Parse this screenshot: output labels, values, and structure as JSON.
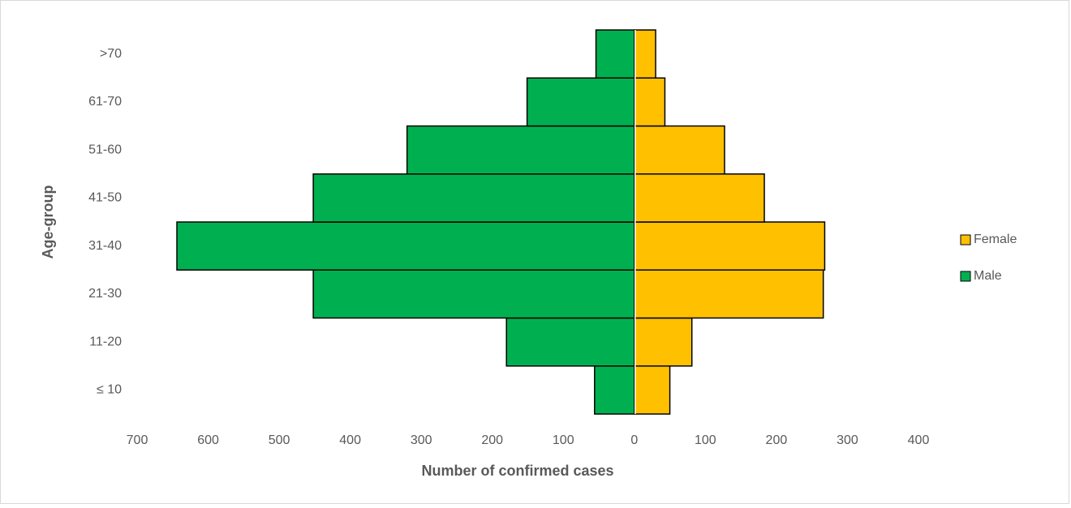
{
  "chart_data": {
    "type": "bar",
    "orientation": "horizontal",
    "stacked": true,
    "xlabel": "Number of confirmed cases",
    "ylabel": "Age-group",
    "categories": [
      "≤ 10",
      "11-20",
      "21-30",
      "31-40",
      "41-50",
      "51-60",
      "61-70",
      ">70"
    ],
    "series": [
      {
        "name": "Female",
        "color": "#ffc000",
        "values": [
          50,
          81,
          266,
          268,
          183,
          127,
          43,
          30
        ]
      },
      {
        "name": "Male",
        "color": "#00b050",
        "values": [
          -56,
          -180,
          -452,
          -644,
          -452,
          -320,
          -151,
          -54
        ]
      }
    ],
    "xlim": [
      -700,
      400
    ],
    "xticks": [
      {
        "value": -700,
        "label": "700"
      },
      {
        "value": -600,
        "label": "600"
      },
      {
        "value": -500,
        "label": "500"
      },
      {
        "value": -400,
        "label": "400"
      },
      {
        "value": -300,
        "label": "300"
      },
      {
        "value": -200,
        "label": "200"
      },
      {
        "value": -100,
        "label": "100"
      },
      0,
      100,
      200,
      300,
      400
    ],
    "grid": false,
    "legend": "right"
  }
}
